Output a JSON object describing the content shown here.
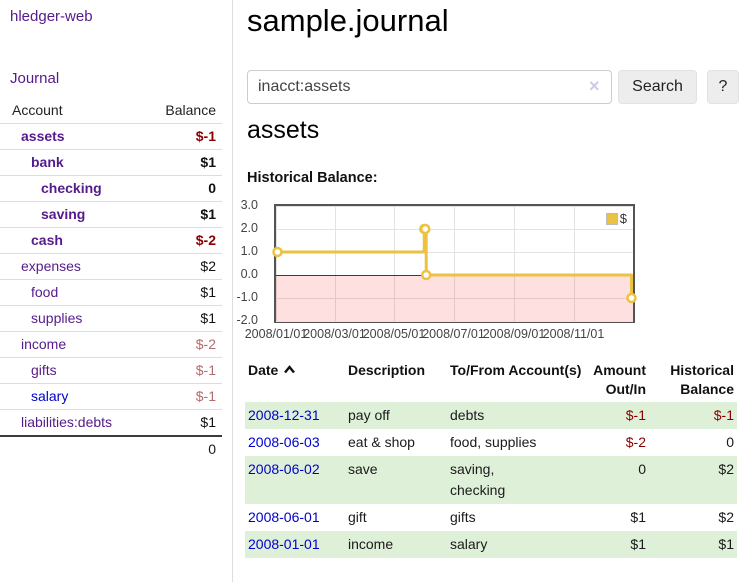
{
  "app": {
    "title": "hledger-web"
  },
  "sidebar": {
    "journal_link": "Journal",
    "table": {
      "account_header": "Account",
      "balance_header": "Balance",
      "accounts": [
        {
          "name": "assets",
          "depth": 1,
          "bold": true,
          "balance": "$-1",
          "balance_style": "neg-dark",
          "link_style": "visited"
        },
        {
          "name": "bank",
          "depth": 2,
          "bold": true,
          "balance": "$1",
          "balance_style": "pos",
          "link_style": "visited"
        },
        {
          "name": "checking",
          "depth": 3,
          "bold": true,
          "balance": "0",
          "balance_style": "pos",
          "link_style": "visited"
        },
        {
          "name": "saving",
          "depth": 3,
          "bold": true,
          "balance": "$1",
          "balance_style": "pos",
          "link_style": "visited"
        },
        {
          "name": "cash",
          "depth": 2,
          "bold": true,
          "balance": "$-2",
          "balance_style": "neg-dark",
          "link_style": "visited"
        },
        {
          "name": "expenses",
          "depth": 1,
          "bold": false,
          "balance": "$2",
          "balance_style": "pos",
          "link_style": "visited"
        },
        {
          "name": "food",
          "depth": 2,
          "bold": false,
          "balance": "$1",
          "balance_style": "pos",
          "link_style": "visited"
        },
        {
          "name": "supplies",
          "depth": 2,
          "bold": false,
          "balance": "$1",
          "balance_style": "pos",
          "link_style": "visited"
        },
        {
          "name": "income",
          "depth": 1,
          "bold": false,
          "balance": "$-2",
          "balance_style": "neg-light",
          "link_style": "visited"
        },
        {
          "name": "gifts",
          "depth": 2,
          "bold": false,
          "balance": "$-1",
          "balance_style": "neg-light",
          "link_style": "visited"
        },
        {
          "name": "salary",
          "depth": 2,
          "bold": false,
          "balance": "$-1",
          "balance_style": "neg-light",
          "link_style": "unvisited"
        },
        {
          "name": "liabilities:debts",
          "depth": 1,
          "bold": false,
          "balance": "$1",
          "balance_style": "pos",
          "link_style": "visited"
        }
      ],
      "total": "0"
    }
  },
  "header": {
    "title": "sample.journal"
  },
  "search": {
    "query": "inacct:assets",
    "clear_icon": "×",
    "button_label": "Search",
    "help_label": "?"
  },
  "account_page": {
    "heading": "assets"
  },
  "chart_data": {
    "type": "line",
    "title": "Historical Balance:",
    "x": [
      "2008-01-01",
      "2008-06-01",
      "2008-06-02",
      "2008-06-03",
      "2008-12-31"
    ],
    "series": [
      {
        "name": "$",
        "color": "#edc240",
        "steps": true,
        "values": [
          1,
          2,
          2,
          0,
          -1
        ]
      }
    ],
    "xlim": [
      "2008-01-01",
      "2009-01-01"
    ],
    "ylim": [
      -2,
      3
    ],
    "xtick_labels": [
      {
        "x": "2008-01-01",
        "label": "2008/01/01"
      },
      {
        "x": "2008-03-01",
        "label": "2008/03/01"
      },
      {
        "x": "2008-05-01",
        "label": "2008/05/01"
      },
      {
        "x": "2008-07-01",
        "label": "2008/07/01"
      },
      {
        "x": "2008-09-01",
        "label": "2008/09/01"
      },
      {
        "x": "2008-11-01",
        "label": "2008/11/01"
      }
    ],
    "ytick_labels": [
      {
        "y": 3,
        "label": "3.0"
      },
      {
        "y": 2,
        "label": "2.0"
      },
      {
        "y": 1,
        "label": "1.0"
      },
      {
        "y": 0,
        "label": "0.0"
      },
      {
        "y": -1,
        "label": "-1.0"
      },
      {
        "y": -2,
        "label": "-2.0"
      }
    ],
    "legend": {
      "label": "$",
      "position": "top-right",
      "swatch_color": "#edc240"
    },
    "grid": true,
    "negative_region": {
      "from": 0,
      "to": -2,
      "color": "rgba(255,0,0,0.12)"
    },
    "zero_line_color": "#8b1a1a"
  },
  "register": {
    "headers": {
      "date": "Date",
      "description": "Description",
      "accounts": "To/From Account(s)",
      "amount": "Amount Out/In",
      "balance": "Historical Balance"
    },
    "rows": [
      {
        "date": "2008-12-31",
        "description": "pay off",
        "accounts": "debts",
        "amount": "$-1",
        "amount_negative": true,
        "balance": "$-1",
        "balance_negative": true
      },
      {
        "date": "2008-06-03",
        "description": "eat & shop",
        "accounts": "food, supplies",
        "amount": "$-2",
        "amount_negative": true,
        "balance": "0",
        "balance_negative": false
      },
      {
        "date": "2008-06-02",
        "description": "save",
        "accounts": "saving, checking",
        "amount": "0",
        "amount_negative": false,
        "balance": "$2",
        "balance_negative": false
      },
      {
        "date": "2008-06-01",
        "description": "gift",
        "accounts": "gifts",
        "amount": "$1",
        "amount_negative": false,
        "balance": "$2",
        "balance_negative": false
      },
      {
        "date": "2008-01-01",
        "description": "income",
        "accounts": "salary",
        "amount": "$1",
        "amount_negative": false,
        "balance": "$1",
        "balance_negative": false
      }
    ]
  }
}
